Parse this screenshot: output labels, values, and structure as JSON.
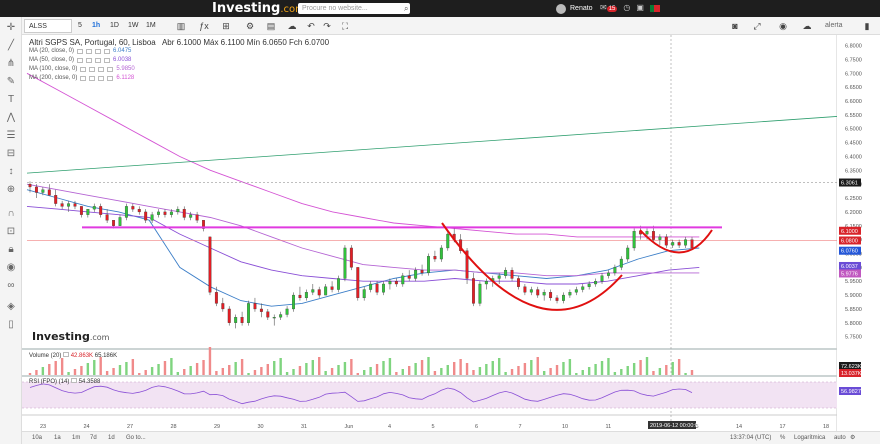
{
  "header": {
    "logo": "Investing",
    "logo_suffix": ".com",
    "search_placeholder": "Procure no website...",
    "user_name": "Renato",
    "notifications": "15"
  },
  "toolbar": {
    "symbol": "ALSS",
    "timeframes": [
      "5",
      "1h",
      "1D",
      "1W",
      "1M"
    ],
    "active_timeframe": "1h",
    "period_select": "1D",
    "right_label": "alerta"
  },
  "legend": {
    "title": "Altri SGPS SA, Portugal, 60, Lisboa",
    "ohlc": "Abr 6.1000  Máx 6.1100  Mín 6.0650  Fch 6.0700",
    "ma": [
      {
        "label": "MA (20, close, 0)",
        "value": "6.0475",
        "color": "#3d7fc8"
      },
      {
        "label": "MA (50, close, 0)",
        "value": "6.0038",
        "color": "#8a4fd6"
      },
      {
        "label": "MA (100, close, 0)",
        "value": "5.9850",
        "color": "#b565d4"
      },
      {
        "label": "MA (200, close, 0)",
        "value": "6.1128",
        "color": "#d454d4"
      }
    ]
  },
  "watermark": {
    "text": "Investing",
    "suffix": ".com"
  },
  "volume": {
    "label": "Volume (20)",
    "v1": "42.863K",
    "v2": "65.186K",
    "box1": "72.623K",
    "box2": "13.037K"
  },
  "rsi": {
    "label": "RSI (FPO) (14)",
    "value": "54.3588",
    "box": "56.9827"
  },
  "price_axis": {
    "ticks": [
      "6.8000",
      "6.7500",
      "6.7000",
      "6.6500",
      "6.6000",
      "6.5500",
      "6.5000",
      "6.4500",
      "6.4000",
      "6.3500",
      "6.3000",
      "6.2500",
      "6.2000",
      "6.1500",
      "6.1000",
      "6.0500",
      "6.0000",
      "5.9500",
      "5.9000",
      "5.8500",
      "5.8000",
      "5.7500"
    ],
    "labels": [
      {
        "text": "6.3061",
        "color": "#1a1a1a",
        "price": 6.306
      },
      {
        "text": "6.1000",
        "color": "#d8232a",
        "price": 6.132
      },
      {
        "text": "6.0800",
        "color": "#d8232a",
        "price": 6.097
      },
      {
        "text": "6.0760",
        "color": "#2457d8",
        "price": 6.06
      },
      {
        "text": "6.0037",
        "color": "#6a4cd6",
        "price": 6.005
      },
      {
        "text": "5.9776",
        "color": "#c058c0",
        "price": 5.978
      }
    ]
  },
  "time_axis": {
    "labels": [
      "23",
      "24",
      "27",
      "28",
      "29",
      "30",
      "31",
      "Jun",
      "4",
      "5",
      "6",
      "7",
      "10",
      "11",
      "12",
      "13",
      "14",
      "17",
      "18"
    ],
    "cursor_label": "2019-06-12 00:00:00"
  },
  "bottom": {
    "ranges": [
      "10a",
      "1a",
      "1m",
      "7d",
      "1d",
      "Go to..."
    ],
    "time": "13:37:04 (UTC)",
    "pct": "%",
    "log": "Logarítmica",
    "auto": "auto"
  },
  "chart_data": {
    "type": "candlestick",
    "title": "Altri SGPS SA, Portugal, 60, Lisboa",
    "ylim": [
      5.72,
      6.82
    ],
    "candles": [
      [
        6.3,
        6.31,
        6.27,
        6.29
      ],
      [
        6.29,
        6.3,
        6.25,
        6.27
      ],
      [
        6.27,
        6.29,
        6.26,
        6.28
      ],
      [
        6.28,
        6.3,
        6.26,
        6.26
      ],
      [
        6.26,
        6.28,
        6.22,
        6.23
      ],
      [
        6.23,
        6.24,
        6.21,
        6.22
      ],
      [
        6.22,
        6.24,
        6.2,
        6.23
      ],
      [
        6.23,
        6.24,
        6.21,
        6.22
      ],
      [
        6.22,
        6.22,
        6.18,
        6.19
      ],
      [
        6.19,
        6.21,
        6.18,
        6.21
      ],
      [
        6.21,
        6.23,
        6.2,
        6.22
      ],
      [
        6.22,
        6.23,
        6.18,
        6.19
      ],
      [
        6.19,
        6.21,
        6.16,
        6.17
      ],
      [
        6.17,
        6.17,
        6.14,
        6.15
      ],
      [
        6.15,
        6.19,
        6.15,
        6.18
      ],
      [
        6.18,
        6.23,
        6.17,
        6.22
      ],
      [
        6.22,
        6.23,
        6.2,
        6.21
      ],
      [
        6.21,
        6.22,
        6.19,
        6.2
      ],
      [
        6.2,
        6.21,
        6.16,
        6.17
      ],
      [
        6.17,
        6.2,
        6.16,
        6.19
      ],
      [
        6.19,
        6.21,
        6.18,
        6.2
      ],
      [
        6.2,
        6.21,
        6.18,
        6.19
      ],
      [
        6.19,
        6.21,
        6.18,
        6.2
      ],
      [
        6.2,
        6.22,
        6.19,
        6.21
      ],
      [
        6.21,
        6.22,
        6.17,
        6.18
      ],
      [
        6.18,
        6.2,
        6.17,
        6.19
      ],
      [
        6.19,
        6.2,
        6.16,
        6.17
      ],
      [
        6.17,
        6.17,
        6.13,
        6.14
      ],
      [
        6.11,
        6.11,
        5.9,
        5.91
      ],
      [
        5.91,
        5.93,
        5.86,
        5.87
      ],
      [
        5.87,
        5.89,
        5.84,
        5.85
      ],
      [
        5.85,
        5.86,
        5.79,
        5.8
      ],
      [
        5.8,
        5.83,
        5.78,
        5.82
      ],
      [
        5.82,
        5.84,
        5.79,
        5.8
      ],
      [
        5.8,
        5.88,
        5.79,
        5.87
      ],
      [
        5.87,
        5.89,
        5.84,
        5.85
      ],
      [
        5.85,
        5.87,
        5.82,
        5.84
      ],
      [
        5.84,
        5.85,
        5.81,
        5.82
      ],
      [
        5.82,
        5.83,
        5.79,
        5.82
      ],
      [
        5.82,
        5.84,
        5.81,
        5.83
      ],
      [
        5.83,
        5.86,
        5.82,
        5.85
      ],
      [
        5.85,
        5.91,
        5.84,
        5.9
      ],
      [
        5.9,
        5.93,
        5.88,
        5.89
      ],
      [
        5.89,
        5.92,
        5.88,
        5.91
      ],
      [
        5.91,
        5.94,
        5.9,
        5.92
      ],
      [
        5.92,
        5.93,
        5.89,
        5.9
      ],
      [
        5.9,
        5.94,
        5.9,
        5.93
      ],
      [
        5.93,
        5.95,
        5.91,
        5.92
      ],
      [
        5.92,
        5.97,
        5.91,
        5.96
      ],
      [
        5.96,
        6.08,
        5.95,
        6.07
      ],
      [
        6.07,
        6.08,
        5.99,
        6.0
      ],
      [
        6.0,
        6.0,
        5.88,
        5.89
      ],
      [
        5.89,
        5.93,
        5.88,
        5.92
      ],
      [
        5.92,
        5.95,
        5.91,
        5.94
      ],
      [
        5.94,
        5.95,
        5.9,
        5.91
      ],
      [
        5.91,
        5.95,
        5.9,
        5.94
      ],
      [
        5.94,
        5.96,
        5.92,
        5.95
      ],
      [
        5.95,
        5.96,
        5.93,
        5.94
      ],
      [
        5.94,
        5.98,
        5.93,
        5.97
      ],
      [
        5.97,
        5.99,
        5.95,
        5.96
      ],
      [
        5.96,
        6.0,
        5.95,
        5.99
      ],
      [
        5.99,
        6.01,
        5.97,
        5.98
      ],
      [
        5.98,
        6.05,
        5.97,
        6.04
      ],
      [
        6.04,
        6.06,
        6.02,
        6.03
      ],
      [
        6.03,
        6.08,
        6.02,
        6.07
      ],
      [
        6.07,
        6.13,
        6.06,
        6.12
      ],
      [
        6.12,
        6.14,
        6.09,
        6.1
      ],
      [
        6.1,
        6.12,
        6.05,
        6.06
      ],
      [
        6.06,
        6.07,
        5.94,
        5.96
      ],
      [
        5.96,
        5.98,
        5.86,
        5.87
      ],
      [
        5.87,
        5.95,
        5.86,
        5.94
      ],
      [
        5.94,
        5.96,
        5.92,
        5.95
      ],
      [
        5.95,
        5.97,
        5.93,
        5.96
      ],
      [
        5.96,
        5.98,
        5.94,
        5.97
      ],
      [
        5.97,
        6.0,
        5.96,
        5.99
      ],
      [
        5.99,
        6.0,
        5.95,
        5.96
      ],
      [
        5.96,
        5.97,
        5.92,
        5.93
      ],
      [
        5.93,
        5.94,
        5.9,
        5.91
      ],
      [
        5.91,
        5.93,
        5.9,
        5.92
      ],
      [
        5.92,
        5.93,
        5.89,
        5.9
      ],
      [
        5.9,
        5.92,
        5.88,
        5.91
      ],
      [
        5.91,
        5.92,
        5.88,
        5.89
      ],
      [
        5.89,
        5.9,
        5.87,
        5.88
      ],
      [
        5.88,
        5.91,
        5.87,
        5.9
      ],
      [
        5.9,
        5.92,
        5.89,
        5.91
      ],
      [
        5.91,
        5.93,
        5.9,
        5.92
      ],
      [
        5.92,
        5.94,
        5.91,
        5.93
      ],
      [
        5.93,
        5.95,
        5.92,
        5.94
      ],
      [
        5.94,
        5.96,
        5.93,
        5.95
      ],
      [
        5.95,
        5.98,
        5.94,
        5.97
      ],
      [
        5.97,
        5.99,
        5.96,
        5.98
      ],
      [
        5.98,
        6.01,
        5.97,
        6.0
      ],
      [
        6.0,
        6.04,
        5.99,
        6.03
      ],
      [
        6.03,
        6.08,
        6.02,
        6.07
      ],
      [
        6.07,
        6.14,
        6.06,
        6.13
      ],
      [
        6.13,
        6.15,
        6.1,
        6.12
      ],
      [
        6.12,
        6.14,
        6.1,
        6.13
      ],
      [
        6.13,
        6.15,
        6.09,
        6.1
      ],
      [
        6.1,
        6.12,
        6.08,
        6.11
      ],
      [
        6.11,
        6.12,
        6.07,
        6.08
      ],
      [
        6.08,
        6.1,
        6.07,
        6.09
      ],
      [
        6.09,
        6.1,
        6.07,
        6.08
      ],
      [
        6.08,
        6.11,
        6.07,
        6.1
      ],
      [
        6.1,
        6.11,
        6.065,
        6.07
      ]
    ],
    "ma_lines": [
      {
        "name": "MA (20, close, 0)",
        "color": "#3d7fc8",
        "values": [
          6.28,
          6.25,
          6.22,
          6.2,
          6.17,
          6.0,
          5.93,
          5.88,
          5.86,
          5.87,
          5.9,
          5.93,
          5.96,
          5.98,
          5.99,
          5.98,
          5.97,
          5.96,
          5.97,
          5.99,
          6.03,
          6.06,
          6.07
        ]
      },
      {
        "name": "MA (50, close, 0)",
        "color": "#8a4fd6",
        "values": [
          6.22,
          6.21,
          6.2,
          6.19,
          6.18,
          6.12,
          6.07,
          6.02,
          5.99,
          5.97,
          5.96,
          5.95,
          5.95,
          5.95,
          5.96,
          5.95,
          5.95,
          5.94,
          5.94,
          5.95,
          5.97,
          5.99,
          6.0
        ]
      },
      {
        "name": "MA (100, close, 0)",
        "color": "#b565d4",
        "values": [
          6.3,
          6.28,
          6.26,
          6.24,
          6.22,
          6.2,
          6.18,
          6.15,
          6.11,
          6.07,
          6.04,
          6.01,
          6.0,
          5.99,
          5.99,
          5.98,
          5.98,
          5.97,
          5.97,
          5.98,
          5.98,
          5.98,
          5.98
        ]
      },
      {
        "name": "MA (200, close, 0)",
        "color": "#d454d4",
        "values": [
          6.7,
          6.64,
          6.58,
          6.52,
          6.46,
          6.4,
          6.35,
          6.31,
          6.27,
          6.23,
          6.2,
          6.18,
          6.16,
          6.15,
          6.14,
          6.13,
          6.12,
          6.12,
          6.11,
          6.11,
          6.11,
          6.11,
          6.11
        ]
      }
    ],
    "resistance_level": 6.144,
    "trend_line": [
      6.34,
      6.4
    ]
  }
}
